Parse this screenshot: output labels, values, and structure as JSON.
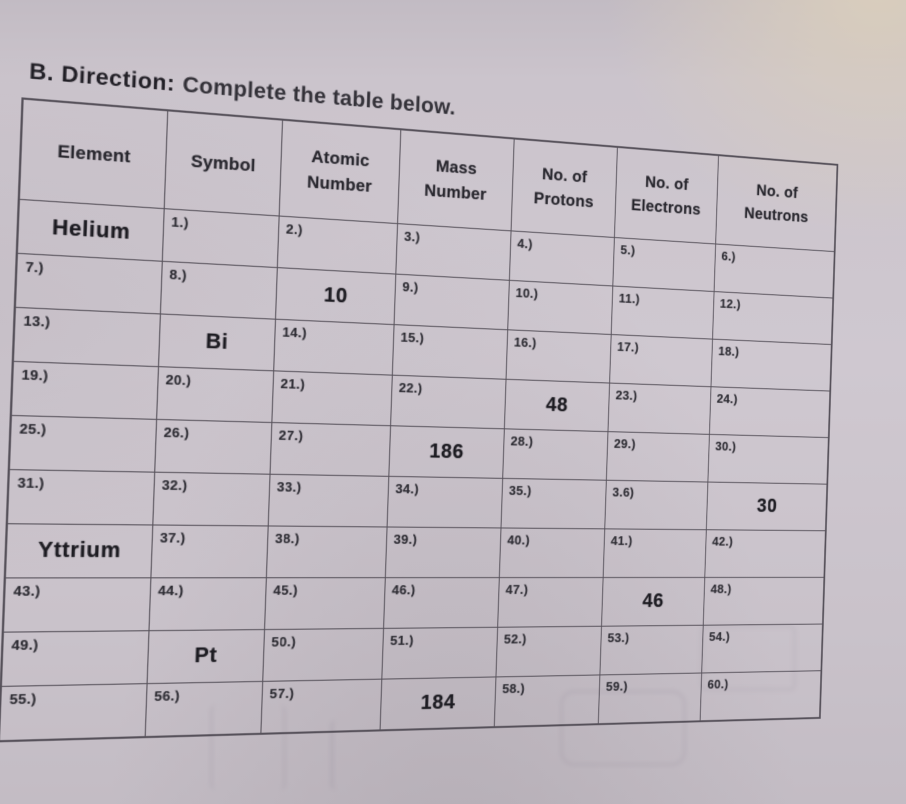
{
  "title": {
    "label_bold": "B. Direction:",
    "label_rest": "Complete the table below."
  },
  "table": {
    "headers": [
      "Element",
      "Symbol",
      "Atomic Number",
      "Mass Number",
      "No. of Protons",
      "No. of Electrons",
      "No. of Neutrons"
    ],
    "rows": [
      [
        {
          "answer": "Helium"
        },
        {
          "label": "1.)"
        },
        {
          "label": "2.)"
        },
        {
          "label": "3.)"
        },
        {
          "label": "4.)"
        },
        {
          "label": "5.)"
        },
        {
          "label": "6.)"
        }
      ],
      [
        {
          "label": "7.)"
        },
        {
          "label": "8.)"
        },
        {
          "answer": "10"
        },
        {
          "label": "9.)"
        },
        {
          "label": "10.)"
        },
        {
          "label": "11.)"
        },
        {
          "label": "12.)"
        }
      ],
      [
        {
          "label": "13.)"
        },
        {
          "answer": "Bi"
        },
        {
          "label": "14.)"
        },
        {
          "label": "15.)"
        },
        {
          "label": "16.)"
        },
        {
          "label": "17.)"
        },
        {
          "label": "18.)"
        }
      ],
      [
        {
          "label": "19.)"
        },
        {
          "label": "20.)"
        },
        {
          "label": "21.)"
        },
        {
          "label": "22.)"
        },
        {
          "answer": "48"
        },
        {
          "label": "23.)"
        },
        {
          "label": "24.)"
        }
      ],
      [
        {
          "label": "25.)"
        },
        {
          "label": "26.)"
        },
        {
          "label": "27.)"
        },
        {
          "answer": "186"
        },
        {
          "label": "28.)"
        },
        {
          "label": "29.)"
        },
        {
          "label": "30.)"
        }
      ],
      [
        {
          "label": "31.)"
        },
        {
          "label": "32.)"
        },
        {
          "label": "33.)"
        },
        {
          "label": "34.)"
        },
        {
          "label": "35.)"
        },
        {
          "label": "3.6)"
        },
        {
          "answer": "30"
        }
      ],
      [
        {
          "answer": "Yttrium"
        },
        {
          "label": "37.)"
        },
        {
          "label": "38.)"
        },
        {
          "label": "39.)"
        },
        {
          "label": "40.)"
        },
        {
          "label": "41.)"
        },
        {
          "label": "42.)"
        }
      ],
      [
        {
          "label": "43.)"
        },
        {
          "label": "44.)"
        },
        {
          "label": "45.)"
        },
        {
          "label": "46.)"
        },
        {
          "label": "47.)"
        },
        {
          "answer": "46"
        },
        {
          "label": "48.)"
        }
      ],
      [
        {
          "label": "49.)"
        },
        {
          "answer": "Pt"
        },
        {
          "label": "50.)"
        },
        {
          "label": "51.)"
        },
        {
          "label": "52.)"
        },
        {
          "label": "53.)"
        },
        {
          "label": "54.)"
        }
      ],
      [
        {
          "label": "55.)"
        },
        {
          "label": "56.)"
        },
        {
          "label": "57.)"
        },
        {
          "answer": "184"
        },
        {
          "label": "58.)"
        },
        {
          "label": "59.)"
        },
        {
          "label": "60.)"
        }
      ]
    ]
  },
  "colors": {
    "paper": "#cbc4cc",
    "ink": "#28272e",
    "table_line": "#56515a",
    "corner_tan": "#d9cebc"
  }
}
